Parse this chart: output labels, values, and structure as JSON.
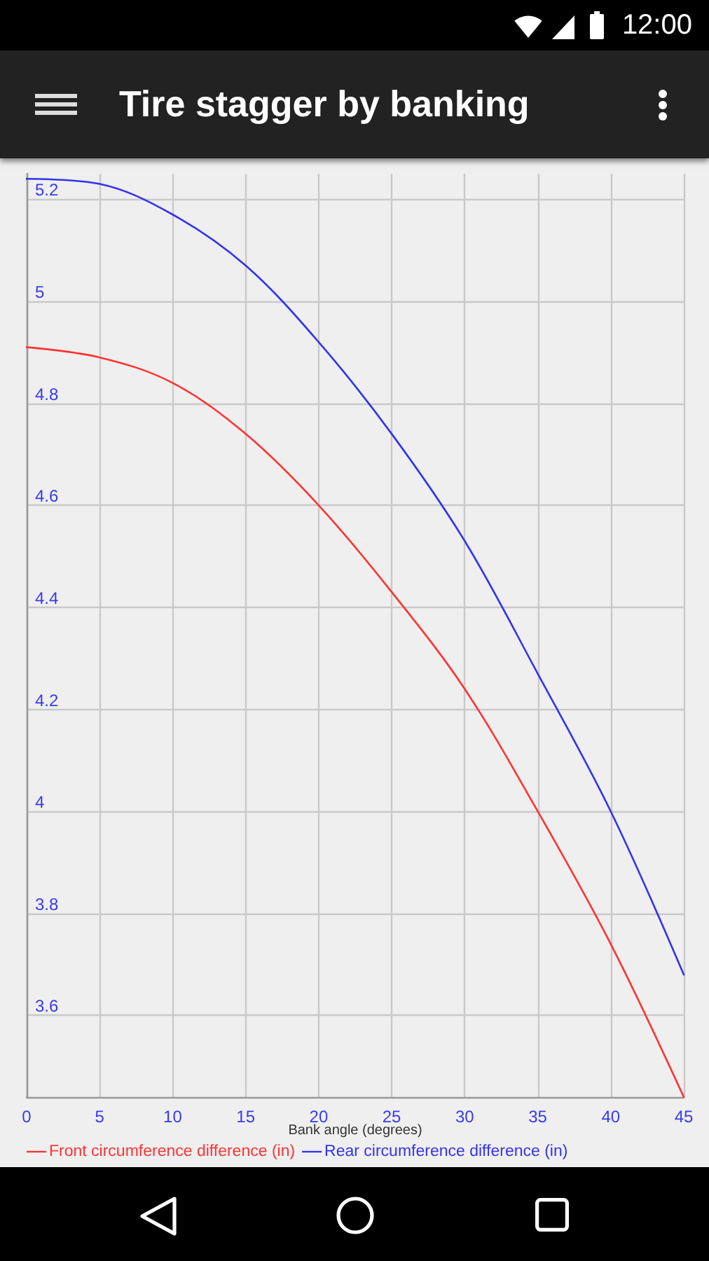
{
  "chart_data": {
    "type": "line",
    "title": "Tire stagger by banking",
    "xlabel": "Bank angle (degrees)",
    "x": [
      0,
      5,
      10,
      15,
      20,
      25,
      30,
      35,
      40,
      45
    ],
    "series": [
      {
        "name": "Front circumference difference (in)",
        "color": "#ff3333",
        "values": [
          4.91,
          4.89,
          4.84,
          4.74,
          4.6,
          4.43,
          4.24,
          4.0,
          3.74,
          3.44
        ]
      },
      {
        "name": "Rear circumference difference (in)",
        "color": "#3333ee",
        "values": [
          5.24,
          5.23,
          5.17,
          5.07,
          4.92,
          4.74,
          4.53,
          4.27,
          4.0,
          3.68
        ]
      }
    ],
    "xlim": [
      0,
      45
    ],
    "ylim": [
      3.44,
      5.25
    ],
    "xticks": [
      0,
      5,
      10,
      15,
      20,
      25,
      30,
      35,
      40,
      45
    ],
    "yticks": [
      3.6,
      3.8,
      4,
      4.2,
      4.4,
      4.6,
      4.8,
      5,
      5.2
    ],
    "grid": true,
    "legend": "bottom left",
    "marker": "none",
    "line_style": "solid",
    "annotations": [
      "12:00"
    ]
  }
}
